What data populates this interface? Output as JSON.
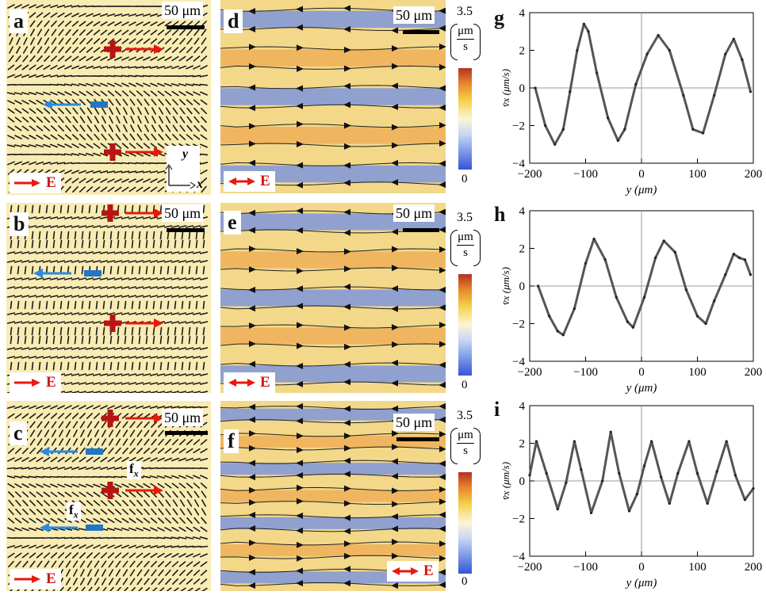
{
  "panels": {
    "a": {
      "label": "a",
      "scale": "50 μm",
      "field": "E",
      "axis_x": "x",
      "axis_y": "y"
    },
    "b": {
      "label": "b",
      "scale": "50 μm",
      "field": "E"
    },
    "c": {
      "label": "c",
      "scale": "50 μm",
      "field": "E",
      "force_label": "f",
      "force_sub": "x"
    },
    "d": {
      "label": "d",
      "scale": "50 μm",
      "field": "E"
    },
    "e": {
      "label": "e",
      "scale": "50 μm",
      "field": "E"
    },
    "f": {
      "label": "f",
      "scale": "50 μm",
      "field": "E"
    }
  },
  "colorbar": {
    "max": "3.5",
    "min": "0",
    "unit_num": "μm",
    "unit_den": "s"
  },
  "colors": {
    "plus": "#b81414",
    "minus": "#2177c4",
    "arrow_red": "#e8180c",
    "arrow_blue": "#2b8ae0"
  },
  "chart_data": [
    {
      "type": "line",
      "panel": "g",
      "xlabel": "y (μm)",
      "ylabel": "v̄x (μm/s)",
      "xlim": [
        -200,
        200
      ],
      "ylim": [
        -4,
        4
      ],
      "xticks": [
        "−200",
        "−100",
        "0",
        "100",
        "200"
      ],
      "yticks": [
        "4",
        "2",
        "0",
        "−2",
        "−4"
      ],
      "x": [
        -190,
        -172,
        -155,
        -140,
        -128,
        -115,
        -103,
        -95,
        -80,
        -60,
        -42,
        -30,
        -10,
        10,
        30,
        50,
        75,
        92,
        110,
        130,
        150,
        165,
        180,
        195
      ],
      "y": [
        0,
        -2.0,
        -3.0,
        -2.2,
        -0.2,
        2.0,
        3.4,
        3.0,
        0.8,
        -1.6,
        -2.8,
        -2.2,
        0.2,
        1.8,
        2.8,
        2.0,
        -0.4,
        -2.2,
        -2.4,
        -0.4,
        1.8,
        2.6,
        1.5,
        -0.2
      ]
    },
    {
      "type": "line",
      "panel": "h",
      "xlabel": "y (μm)",
      "ylabel": "v̄x (μm/s)",
      "xlim": [
        -200,
        200
      ],
      "ylim": [
        -4,
        4
      ],
      "xticks": [
        "−200",
        "−100",
        "0",
        "100",
        "200"
      ],
      "yticks": [
        "4",
        "2",
        "0",
        "−2",
        "−4"
      ],
      "x": [
        -185,
        -165,
        -150,
        -140,
        -120,
        -100,
        -85,
        -65,
        -45,
        -25,
        -15,
        5,
        25,
        40,
        60,
        80,
        100,
        115,
        130,
        150,
        165,
        175,
        185,
        195
      ],
      "y": [
        0,
        -1.6,
        -2.4,
        -2.6,
        -1.2,
        1.2,
        2.5,
        1.4,
        -0.6,
        -1.9,
        -2.2,
        -0.6,
        1.5,
        2.4,
        1.8,
        -0.2,
        -1.6,
        -2.0,
        -0.8,
        0.6,
        1.7,
        1.5,
        1.4,
        0.6
      ]
    },
    {
      "type": "line",
      "panel": "i",
      "xlabel": "y (μm)",
      "ylabel": "v̄x (μm/s)",
      "xlim": [
        -200,
        200
      ],
      "ylim": [
        -4,
        4
      ],
      "xticks": [
        "−200",
        "−100",
        "0",
        "100",
        "200"
      ],
      "yticks": [
        "4",
        "2",
        "0",
        "−2",
        "−4"
      ],
      "x": [
        -200,
        -188,
        -170,
        -150,
        -135,
        -120,
        -108,
        -90,
        -70,
        -55,
        -40,
        -22,
        -8,
        5,
        18,
        35,
        50,
        65,
        85,
        100,
        118,
        135,
        152,
        168,
        185,
        200
      ],
      "y": [
        0.3,
        2.1,
        0.4,
        -1.5,
        -0.1,
        2.1,
        0.6,
        -1.7,
        0.0,
        2.6,
        0.4,
        -1.6,
        -0.7,
        0.8,
        2.1,
        0.2,
        -1.2,
        0.4,
        2.1,
        0.4,
        -1.2,
        0.5,
        2.1,
        0.3,
        -1.0,
        -0.4
      ]
    }
  ]
}
